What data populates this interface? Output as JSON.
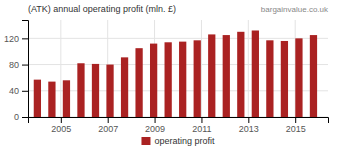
{
  "chart_data": {
    "type": "bar",
    "title": "(ATK) annual operating profit (mln. £)",
    "subtitle": "bargainvalue.co.uk",
    "x": [
      2004.0,
      2004.62,
      2005.24,
      2005.86,
      2006.48,
      2007.1,
      2007.72,
      2008.34,
      2008.96,
      2009.58,
      2010.2,
      2010.82,
      2011.44,
      2012.06,
      2012.68,
      2013.3,
      2013.92,
      2014.54,
      2015.16,
      2015.78
    ],
    "series": [
      {
        "name": "operating profit",
        "color": "#aa2222",
        "values": [
          57,
          54,
          56,
          82,
          81,
          80,
          91,
          105,
          112,
          114,
          115,
          117,
          126,
          125,
          130,
          132,
          117,
          116,
          120,
          125
        ]
      }
    ],
    "xlim": [
      2003.6,
      2016.4
    ],
    "xticks": [
      2005,
      2007,
      2009,
      2011,
      2013,
      2015
    ],
    "ylim": [
      0,
      148
    ],
    "yticks": [
      0,
      40,
      80,
      120
    ],
    "grid": true,
    "legend": "bottom"
  }
}
